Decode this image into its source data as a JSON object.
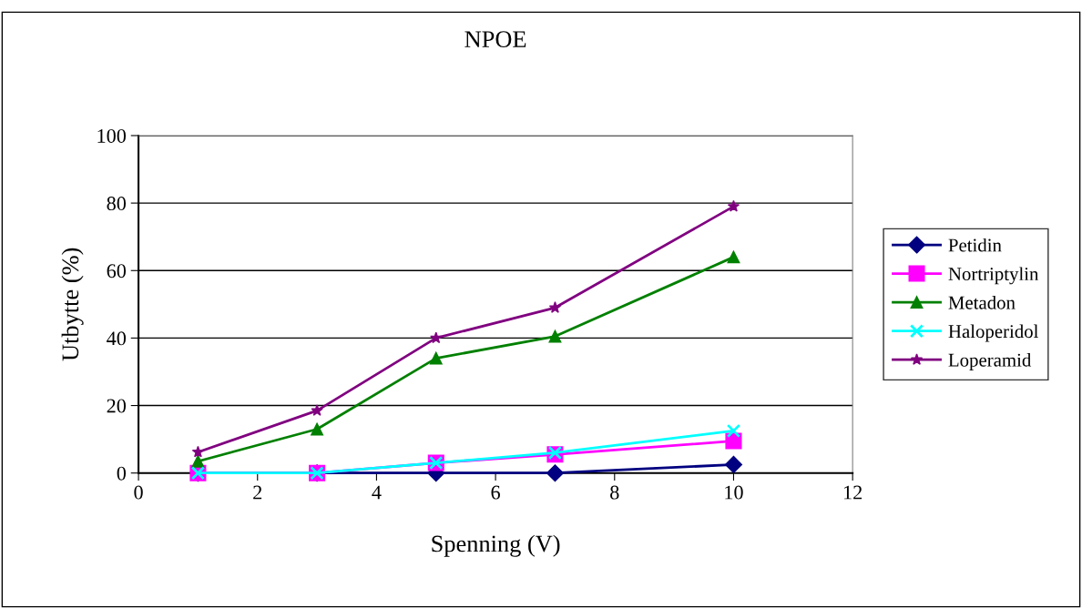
{
  "chart_data": {
    "type": "line",
    "title": "NPOE",
    "xlabel": "Spenning (V)",
    "ylabel": "Utbytte (%)",
    "x": [
      1,
      3,
      5,
      7,
      10
    ],
    "series": [
      {
        "name": "Petidin",
        "color": "#000080",
        "marker": "diamond",
        "values": [
          0,
          0,
          0,
          0,
          2.5
        ]
      },
      {
        "name": "Nortriptylin",
        "color": "#ff00ff",
        "marker": "square",
        "values": [
          0,
          0,
          3,
          5.5,
          9.5
        ]
      },
      {
        "name": "Metadon",
        "color": "#008000",
        "marker": "triangle",
        "values": [
          3.5,
          13,
          34,
          40.5,
          64
        ]
      },
      {
        "name": "Haloperidol",
        "color": "#00ffff",
        "marker": "cross",
        "values": [
          0,
          0,
          3,
          6,
          12.5
        ]
      },
      {
        "name": "Loperamid",
        "color": "#800080",
        "marker": "star",
        "values": [
          6.2,
          18.5,
          40,
          49,
          79
        ]
      }
    ],
    "xlim": [
      0,
      12
    ],
    "xticks": [
      0,
      2,
      4,
      6,
      8,
      10,
      12
    ],
    "ylim": [
      0,
      100
    ],
    "yticks": [
      0,
      20,
      40,
      60,
      80,
      100
    ],
    "grid": "y",
    "legend": "right",
    "line_style": "solid"
  }
}
